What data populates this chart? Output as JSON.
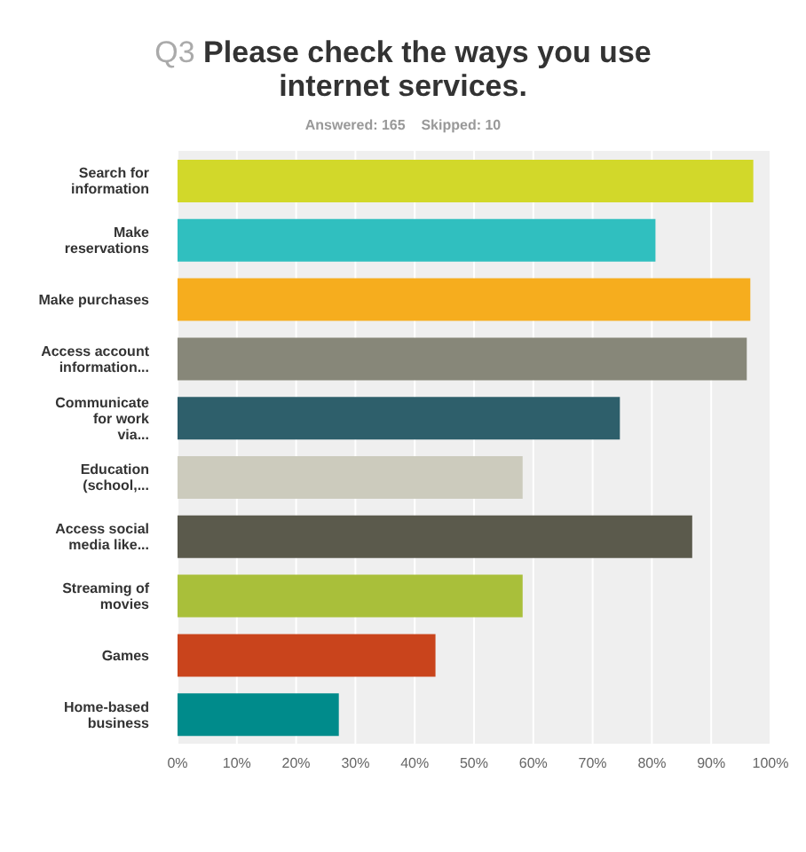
{
  "chart_data": {
    "type": "bar",
    "orientation": "horizontal",
    "title": "Q3 Please check the ways you use internet services.",
    "subtitle": "Answered: 165    Skipped: 10",
    "categories": [
      "Search for information",
      "Make reservations",
      "Make purchases",
      "Access account information...",
      "Communicate for work via...",
      "Education (school,...",
      "Access social media like...",
      "Streaming of movies",
      "Games",
      "Home-based business"
    ],
    "values": [
      97.1,
      80.6,
      96.6,
      96.0,
      74.6,
      58.2,
      86.8,
      58.2,
      43.5,
      27.2
    ],
    "colors": [
      "#d2d82a",
      "#30bfbf",
      "#f6ad1e",
      "#878779",
      "#2e5f6b",
      "#cccbbd",
      "#5b5a4c",
      "#a9bf3a",
      "#c9441c",
      "#008b8b"
    ],
    "xlim": [
      0,
      100
    ],
    "xticks": [
      {
        "value": 0,
        "label": "0%"
      },
      {
        "value": 10,
        "label": "10%"
      },
      {
        "value": 20,
        "label": "20%"
      },
      {
        "value": 30,
        "label": "30%"
      },
      {
        "value": 40,
        "label": "40%"
      },
      {
        "value": 50,
        "label": "50%"
      },
      {
        "value": 60,
        "label": "60%"
      },
      {
        "value": 70,
        "label": "70%"
      },
      {
        "value": 80,
        "label": "80%"
      },
      {
        "value": 90,
        "label": "90%"
      },
      {
        "value": 100,
        "label": "100%"
      }
    ],
    "grid": "x"
  }
}
